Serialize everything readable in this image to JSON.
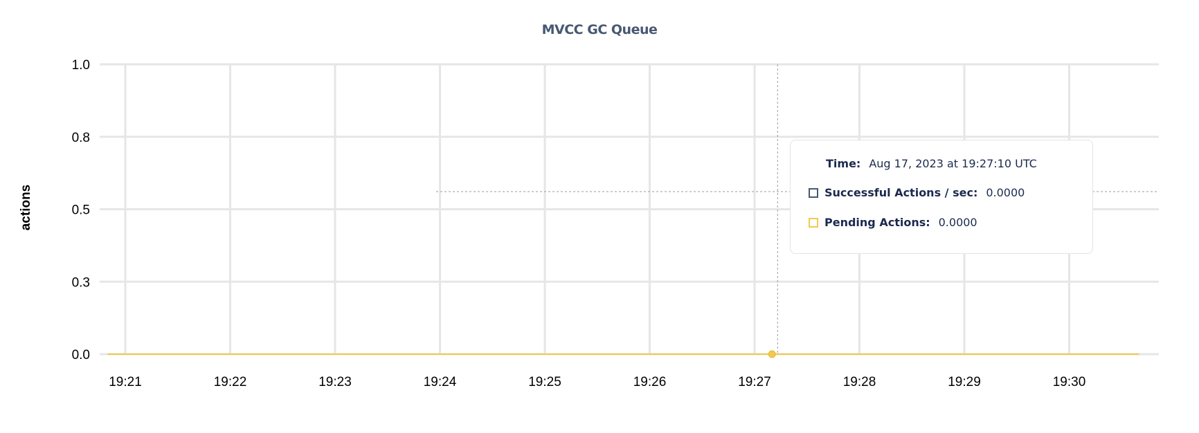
{
  "chart_data": {
    "type": "line",
    "title": "MVCC GC Queue",
    "ylabel": "actions",
    "xlabel": "",
    "ylim": [
      0,
      1
    ],
    "yticks": [
      0,
      0.25,
      0.5,
      0.75,
      1.0
    ],
    "ytick_labels": [
      "0.0",
      "0.3",
      "0.5",
      "0.8",
      "1.0"
    ],
    "xtick_labels": [
      "19:21",
      "19:22",
      "19:23",
      "19:24",
      "19:25",
      "19:26",
      "19:27",
      "19:28",
      "19:29",
      "19:30"
    ],
    "x_range": [
      "19:20:50",
      "19:30:40"
    ],
    "grid": true,
    "series": [
      {
        "name": "Successful Actions / sec",
        "color": "#475872",
        "x": [
          "19:20:50",
          "19:30:40"
        ],
        "values": [
          0,
          0
        ]
      },
      {
        "name": "Pending Actions",
        "color": "#f2c94c",
        "x": [
          "19:20:50",
          "19:30:40"
        ],
        "values": [
          0,
          0
        ]
      }
    ],
    "hover": {
      "x": "19:27:10",
      "y": 0
    }
  },
  "tooltip": {
    "time_label": "Time:",
    "time_value": "Aug 17, 2023 at 19:27:10 UTC",
    "rows": [
      {
        "label": "Successful Actions / sec:",
        "value": "0.0000",
        "color": "#475872"
      },
      {
        "label": "Pending Actions:",
        "value": "0.0000",
        "color": "#f2c94c"
      }
    ]
  }
}
